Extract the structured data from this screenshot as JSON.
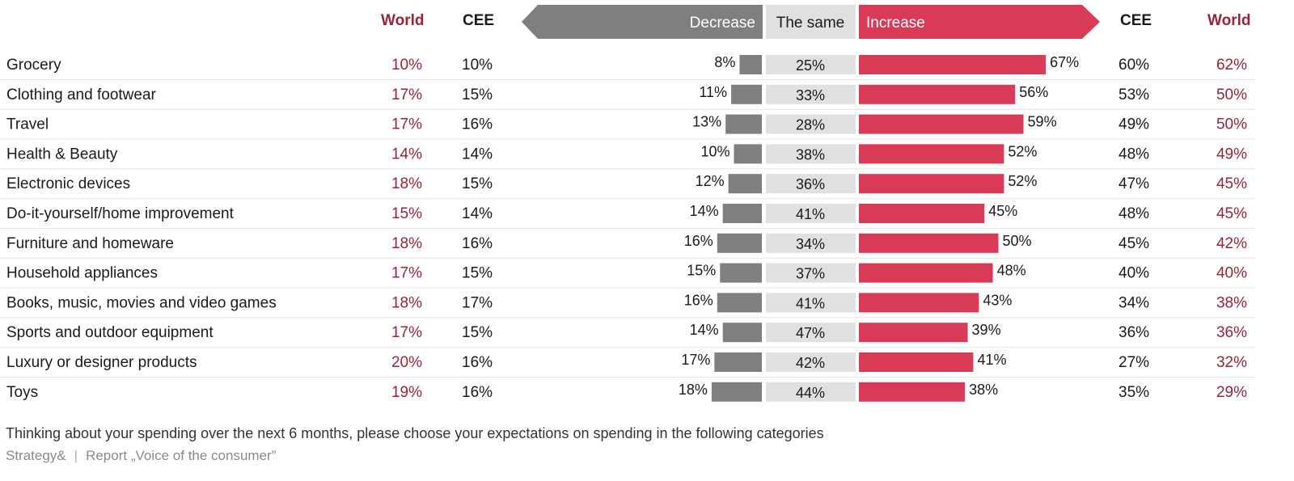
{
  "headers": {
    "world_left": "World",
    "cee_left": "CEE",
    "decrease": "Decrease",
    "same": "The same",
    "increase": "Increase",
    "cee_right": "CEE",
    "world_right": "World"
  },
  "colors": {
    "decrease": "#7f7f7f",
    "same": "#e0e0e0",
    "increase": "#d93a56",
    "world_text": "#9b2335"
  },
  "chart_data": {
    "type": "bar",
    "orientation": "horizontal",
    "stacked": "diverging",
    "categories": [
      "Grocery",
      "Clothing and footwear",
      "Travel",
      "Health & Beauty",
      "Electronic devices",
      "Do-it-yourself/home improvement",
      "Furniture and homeware",
      "Household appliances",
      "Books, music, movies and video games",
      "Sports and outdoor equipment",
      "Luxury or designer products",
      "Toys"
    ],
    "series": [
      {
        "name": "Decrease",
        "values": [
          8,
          11,
          13,
          10,
          12,
          14,
          16,
          15,
          16,
          14,
          17,
          18
        ]
      },
      {
        "name": "The same",
        "values": [
          25,
          33,
          28,
          38,
          36,
          41,
          34,
          37,
          41,
          47,
          42,
          44
        ]
      },
      {
        "name": "Increase",
        "values": [
          67,
          56,
          59,
          52,
          52,
          45,
          50,
          48,
          43,
          39,
          41,
          38
        ]
      }
    ],
    "world_decrease": [
      "10%",
      "17%",
      "17%",
      "14%",
      "18%",
      "15%",
      "18%",
      "17%",
      "18%",
      "17%",
      "20%",
      "19%"
    ],
    "cee_decrease": [
      "10%",
      "15%",
      "16%",
      "14%",
      "15%",
      "14%",
      "16%",
      "15%",
      "17%",
      "15%",
      "16%",
      "16%"
    ],
    "cee_increase": [
      "60%",
      "53%",
      "49%",
      "48%",
      "47%",
      "48%",
      "45%",
      "40%",
      "34%",
      "36%",
      "27%",
      "35%"
    ],
    "world_increase": [
      "62%",
      "50%",
      "50%",
      "49%",
      "45%",
      "45%",
      "42%",
      "40%",
      "38%",
      "36%",
      "32%",
      "29%"
    ],
    "unit": "%",
    "grid": false
  },
  "footer": {
    "question": "Thinking about your spending over the next 6 months, please choose your expectations on spending in the following categories",
    "source": "Strategy&",
    "report": "Report „Voice of the consumer”"
  }
}
